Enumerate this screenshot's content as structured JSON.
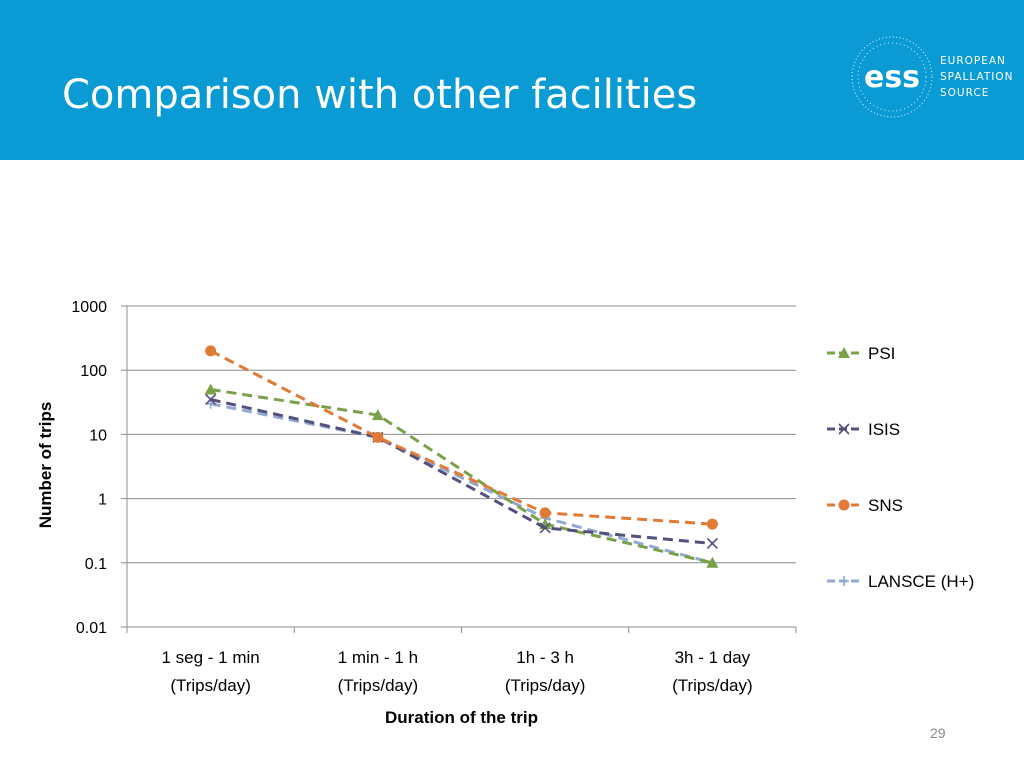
{
  "slide": {
    "title": "Comparison with other facilities",
    "page_number": "29",
    "logo": {
      "mark": "ess",
      "line1": "EUROPEAN",
      "line2": "SPALLATION",
      "line3": "SOURCE"
    }
  },
  "colors": {
    "header": "#0a9bd5"
  },
  "chart_data": {
    "type": "line",
    "title": "",
    "xlabel": "Duration of the trip",
    "ylabel": "Number of trips",
    "yscale": "log",
    "ylim": [
      0.01,
      1000
    ],
    "yticks": [
      "1000",
      "100",
      "10",
      "1",
      "0.1",
      "0.01"
    ],
    "categories": [
      [
        "1 seg - 1 min",
        "(Trips/day)"
      ],
      [
        "1 min - 1 h",
        "(Trips/day)"
      ],
      [
        "1h - 3 h",
        "(Trips/day)"
      ],
      [
        "3h - 1 day",
        "(Trips/day)"
      ]
    ],
    "grid": true,
    "legend": "right",
    "series": [
      {
        "name": "PSI",
        "values": [
          50,
          20,
          0.4,
          0.1
        ],
        "color": "#7aa04a",
        "marker": "triangle"
      },
      {
        "name": "ISIS",
        "values": [
          35,
          9,
          0.35,
          0.2
        ],
        "color": "#54507e",
        "marker": "x"
      },
      {
        "name": "SNS",
        "values": [
          200,
          9,
          0.6,
          0.4
        ],
        "color": "#e07a34",
        "marker": "circle"
      },
      {
        "name": "LANSCE (H+)",
        "values": [
          30,
          9,
          0.5,
          0.1
        ],
        "color": "#92a9d2",
        "marker": "plus"
      }
    ]
  }
}
